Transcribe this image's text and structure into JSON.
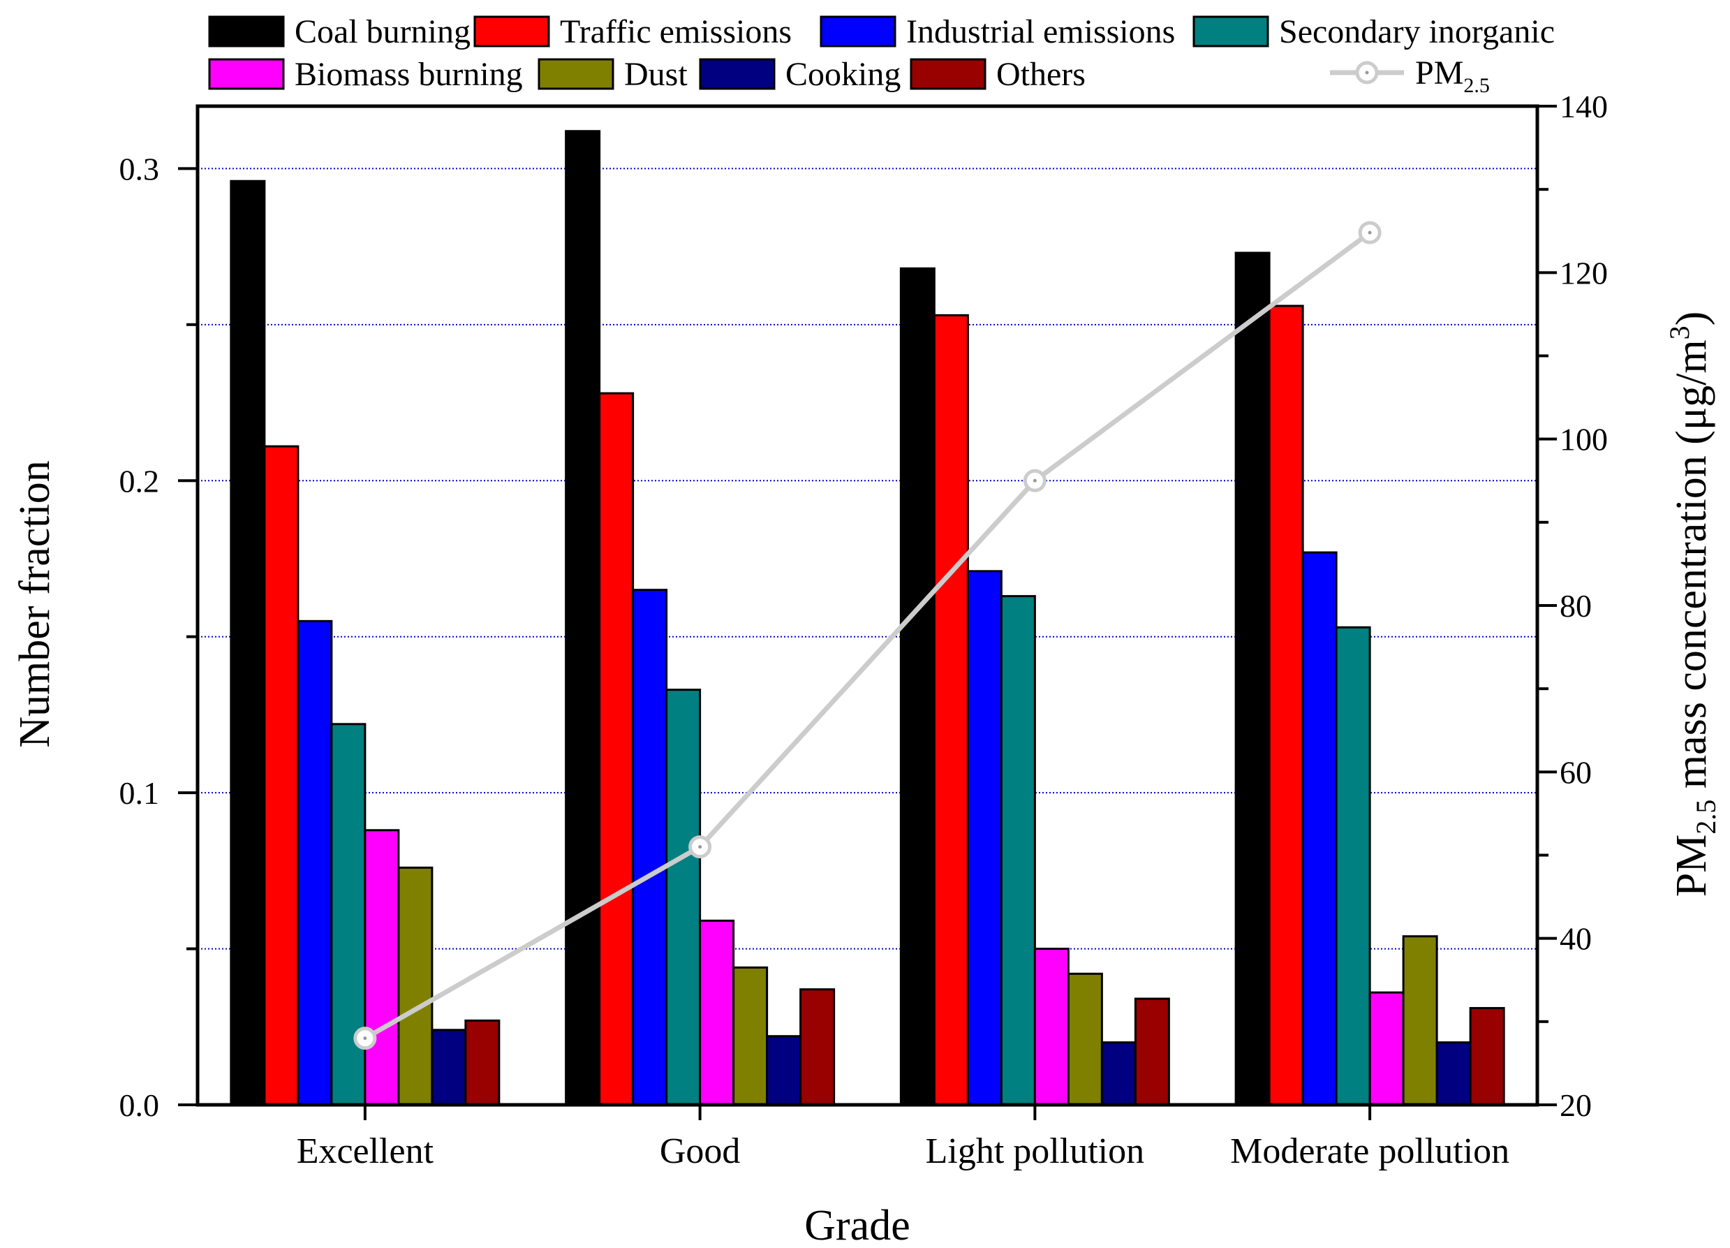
{
  "chart_data": {
    "type": "bar",
    "categories": [
      "Excellent",
      "Good",
      "Light pollution",
      "Moderate pollution"
    ],
    "series": [
      {
        "name": "Coal burning",
        "color": "#000000",
        "values": [
          0.296,
          0.312,
          0.268,
          0.273
        ]
      },
      {
        "name": "Traffic emissions",
        "color": "#ff0000",
        "values": [
          0.211,
          0.228,
          0.253,
          0.256
        ]
      },
      {
        "name": "Industrial emissions",
        "color": "#0000ff",
        "values": [
          0.155,
          0.165,
          0.171,
          0.177
        ]
      },
      {
        "name": "Secondary inorganic",
        "color": "#008080",
        "values": [
          0.122,
          0.133,
          0.163,
          0.153
        ]
      },
      {
        "name": "Biomass burning",
        "color": "#ff00ff",
        "values": [
          0.088,
          0.059,
          0.05,
          0.036
        ]
      },
      {
        "name": "Dust",
        "color": "#808000",
        "values": [
          0.076,
          0.044,
          0.042,
          0.054
        ]
      },
      {
        "name": "Cooking",
        "color": "#000080",
        "values": [
          0.024,
          0.022,
          0.02,
          0.02
        ]
      },
      {
        "name": "Others",
        "color": "#990000",
        "values": [
          0.027,
          0.037,
          0.034,
          0.031
        ]
      }
    ],
    "line_series": {
      "name": "PM2.5",
      "name_main": "PM",
      "name_sub": "2.5",
      "color": "#cccccc",
      "values": [
        28,
        51,
        95,
        124.8
      ]
    },
    "ylabel": "Number fraction",
    "xlabel": "Grade",
    "y2label_prefix": "PM",
    "y2label_sub": "2.5",
    "y2label_rest": " mass concentration (μg/m",
    "y2label_sup": "3",
    "y2label_close": ")",
    "ylim": [
      0,
      0.32
    ],
    "y2lim": [
      20,
      140
    ],
    "yticks": [
      "0.0",
      "0.1",
      "0.2",
      "0.3"
    ],
    "y2ticks": [
      "20",
      "40",
      "60",
      "80",
      "100",
      "120",
      "140"
    ],
    "grid": true
  }
}
